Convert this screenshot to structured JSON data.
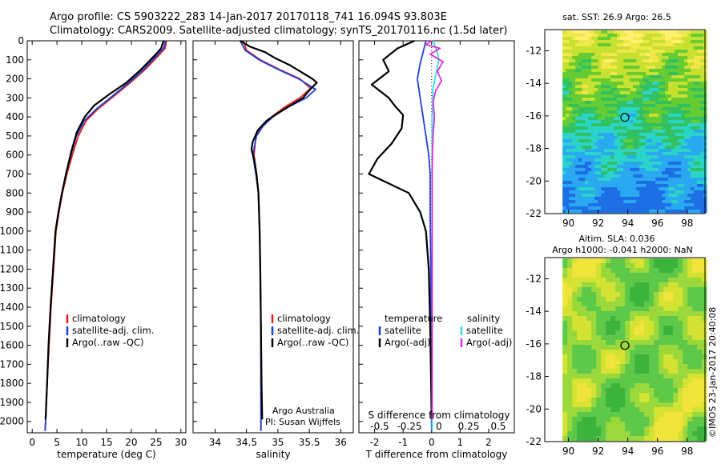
{
  "title_line1": "Argo profile: CS 5903222_283 14-Jan-2017 20170118_741 16.094S 93.803E",
  "title_line2": "Climatology: CARS2009. Satellite-adjusted climatology: synTS_20170116.nc (1.5d later)",
  "credit": "Argo Australia",
  "pi": "PI: Susan Wijffels",
  "imos_stamp": "©IMOS 23-Jan-2017 20:40:08",
  "colors": {
    "climatology": "#e41a1c",
    "satellite": "#1f3fd6",
    "argo": "#000000",
    "salinity_satellite": "#33e0e0",
    "salinity_argo": "#e030d8"
  },
  "chart_data": [
    {
      "id": "temperature",
      "type": "line",
      "xlabel": "temperature (deg C)",
      "ylabel": "",
      "xlim": [
        -1,
        31
      ],
      "ylim": [
        2060,
        0
      ],
      "xticks": [
        0,
        5,
        10,
        15,
        20,
        25,
        30
      ],
      "yticks": [
        0,
        100,
        200,
        300,
        400,
        500,
        600,
        700,
        800,
        900,
        1000,
        1100,
        1200,
        1300,
        1400,
        1500,
        1600,
        1700,
        1800,
        1900,
        2000
      ],
      "legend": [
        "climatology",
        "satellite-adj. clim.",
        "Argo(..raw -QC)"
      ],
      "series": [
        {
          "name": "climatology",
          "color": "#e41a1c",
          "points": [
            [
              27.1,
              0
            ],
            [
              26.8,
              40
            ],
            [
              25.4,
              80
            ],
            [
              22.8,
              150
            ],
            [
              19.8,
              220
            ],
            [
              16.5,
              290
            ],
            [
              13.2,
              360
            ],
            [
              10.9,
              420
            ],
            [
              9.3,
              500
            ],
            [
              8.1,
              600
            ],
            [
              7.0,
              700
            ],
            [
              6.1,
              800
            ],
            [
              5.4,
              900
            ],
            [
              4.8,
              1000
            ],
            [
              4.3,
              1200
            ],
            [
              3.8,
              1400
            ],
            [
              3.4,
              1600
            ],
            [
              3.0,
              1800
            ],
            [
              2.7,
              2000
            ],
            [
              2.6,
              2050
            ]
          ]
        },
        {
          "name": "satellite-adj. clim.",
          "color": "#1f3fd6",
          "points": [
            [
              26.9,
              0
            ],
            [
              26.5,
              40
            ],
            [
              25.0,
              80
            ],
            [
              22.5,
              150
            ],
            [
              19.5,
              220
            ],
            [
              16.2,
              290
            ],
            [
              12.9,
              360
            ],
            [
              10.5,
              420
            ],
            [
              8.9,
              500
            ],
            [
              7.8,
              600
            ],
            [
              6.8,
              700
            ],
            [
              6.0,
              800
            ],
            [
              5.3,
              900
            ],
            [
              4.7,
              1000
            ],
            [
              4.2,
              1200
            ],
            [
              3.7,
              1400
            ],
            [
              3.3,
              1600
            ],
            [
              3.0,
              1800
            ],
            [
              2.7,
              2000
            ],
            [
              2.6,
              2050
            ]
          ]
        },
        {
          "name": "Argo(..raw -QC)",
          "color": "#000000",
          "points": [
            [
              26.5,
              0
            ],
            [
              26.0,
              40
            ],
            [
              24.6,
              80
            ],
            [
              22.0,
              150
            ],
            [
              19.0,
              220
            ],
            [
              15.6,
              280
            ],
            [
              12.5,
              340
            ],
            [
              10.6,
              400
            ],
            [
              9.0,
              480
            ],
            [
              7.9,
              580
            ],
            [
              6.9,
              690
            ],
            [
              6.0,
              800
            ],
            [
              5.3,
              900
            ],
            [
              4.7,
              1000
            ],
            [
              4.2,
              1200
            ],
            [
              3.7,
              1400
            ],
            [
              3.3,
              1600
            ],
            [
              3.0,
              1800
            ],
            [
              2.7,
              1990
            ]
          ]
        }
      ]
    },
    {
      "id": "salinity",
      "type": "line",
      "xlabel": "salinity",
      "xlim": [
        33.65,
        36.2
      ],
      "ylim": [
        2060,
        0
      ],
      "xticks": [
        34,
        34.5,
        35,
        35.5,
        36
      ],
      "legend": [
        "climatology",
        "satellite-adj. clim.",
        "Argo(..raw -QC)"
      ],
      "series": [
        {
          "name": "climatology",
          "color": "#e41a1c",
          "points": [
            [
              34.45,
              0
            ],
            [
              34.5,
              50
            ],
            [
              34.72,
              100
            ],
            [
              35.02,
              150
            ],
            [
              35.35,
              200
            ],
            [
              35.52,
              250
            ],
            [
              35.35,
              300
            ],
            [
              35.1,
              350
            ],
            [
              34.9,
              400
            ],
            [
              34.75,
              450
            ],
            [
              34.65,
              500
            ],
            [
              34.62,
              600
            ],
            [
              34.66,
              700
            ],
            [
              34.69,
              800
            ],
            [
              34.71,
              1000
            ],
            [
              34.72,
              1200
            ],
            [
              34.73,
              1500
            ],
            [
              34.73,
              2050
            ]
          ]
        },
        {
          "name": "satellite-adj. clim.",
          "color": "#1f3fd6",
          "points": [
            [
              34.4,
              0
            ],
            [
              34.48,
              50
            ],
            [
              34.7,
              100
            ],
            [
              35.0,
              150
            ],
            [
              35.33,
              200
            ],
            [
              35.6,
              255
            ],
            [
              35.45,
              300
            ],
            [
              35.15,
              350
            ],
            [
              34.92,
              400
            ],
            [
              34.76,
              450
            ],
            [
              34.66,
              500
            ],
            [
              34.6,
              600
            ],
            [
              34.65,
              700
            ],
            [
              34.69,
              800
            ],
            [
              34.71,
              1000
            ],
            [
              34.72,
              1200
            ],
            [
              34.73,
              1500
            ],
            [
              34.73,
              2050
            ]
          ]
        },
        {
          "name": "Argo(..raw -QC)",
          "color": "#000000",
          "points": [
            [
              34.4,
              0
            ],
            [
              34.55,
              30
            ],
            [
              34.8,
              60
            ],
            [
              34.95,
              90
            ],
            [
              35.2,
              130
            ],
            [
              35.4,
              170
            ],
            [
              35.55,
              200
            ],
            [
              35.62,
              220
            ],
            [
              35.5,
              260
            ],
            [
              35.4,
              300
            ],
            [
              35.2,
              340
            ],
            [
              35.0,
              380
            ],
            [
              34.82,
              420
            ],
            [
              34.68,
              470
            ],
            [
              34.6,
              530
            ],
            [
              34.58,
              570
            ],
            [
              34.62,
              620
            ],
            [
              34.66,
              700
            ],
            [
              34.69,
              800
            ],
            [
              34.71,
              1000
            ],
            [
              34.72,
              1200
            ],
            [
              34.73,
              1500
            ],
            [
              34.74,
              1800
            ],
            [
              34.75,
              1990
            ]
          ]
        }
      ]
    },
    {
      "id": "difference",
      "type": "line",
      "xlabel": "T difference from climatology",
      "xlabel_top": "S difference from climatology",
      "xlim": [
        -2.55,
        2.9
      ],
      "ylim": [
        2060,
        0
      ],
      "xticks": [
        -2,
        -1,
        0,
        1,
        2
      ],
      "xtick_labels": [
        "-2",
        "-1",
        "0",
        "1",
        "2"
      ],
      "sticks": [
        -0.5,
        -0.25,
        0,
        0.25,
        0.5
      ],
      "stick_labels": [
        "-0.5",
        "-0.25",
        "0",
        "0.25",
        "0.5"
      ],
      "legend_headers": [
        "temperature",
        "salinity"
      ],
      "legend": [
        "satellite",
        "Argo(-adj)"
      ],
      "series": [
        {
          "name": "temperature satellite",
          "color": "#1f3fd6",
          "points": [
            [
              -0.2,
              0
            ],
            [
              -0.3,
              60
            ],
            [
              -0.4,
              120
            ],
            [
              -0.5,
              200
            ],
            [
              -0.4,
              300
            ],
            [
              -0.3,
              400
            ],
            [
              -0.2,
              500
            ],
            [
              -0.1,
              600
            ],
            [
              -0.05,
              700
            ],
            [
              -0.05,
              900
            ],
            [
              -0.03,
              1200
            ],
            [
              -0.02,
              1600
            ],
            [
              0,
              2050
            ]
          ]
        },
        {
          "name": "temperature Argo(-adj)",
          "color": "#000000",
          "points": [
            [
              -0.6,
              0
            ],
            [
              -1.2,
              40
            ],
            [
              -1.7,
              100
            ],
            [
              -1.5,
              160
            ],
            [
              -2.1,
              230
            ],
            [
              -1.5,
              300
            ],
            [
              -1.3,
              340
            ],
            [
              -1.0,
              390
            ],
            [
              -1.05,
              460
            ],
            [
              -1.4,
              540
            ],
            [
              -1.9,
              620
            ],
            [
              -2.2,
              700
            ],
            [
              -1.5,
              750
            ],
            [
              -0.8,
              800
            ],
            [
              -0.4,
              900
            ],
            [
              -0.2,
              1000
            ],
            [
              -0.1,
              1200
            ],
            [
              -0.05,
              1500
            ],
            [
              -0.02,
              1800
            ],
            [
              0,
              1990
            ]
          ]
        },
        {
          "name": "salinity satellite",
          "color": "#33e0e0",
          "points": [
            [
              0.05,
              0
            ],
            [
              0.2,
              60
            ],
            [
              0.25,
              100
            ],
            [
              0.15,
              180
            ],
            [
              0.05,
              250
            ],
            [
              0.02,
              400
            ],
            [
              0.02,
              600
            ],
            [
              0.02,
              800
            ],
            [
              0.02,
              1000
            ],
            [
              0.02,
              1400
            ],
            [
              0.02,
              1800
            ],
            [
              0.02,
              2050
            ]
          ]
        },
        {
          "name": "salinity Argo(-adj)",
          "color": "#e030d8",
          "points": [
            [
              0,
              0
            ],
            [
              -0.2,
              20
            ],
            [
              0.3,
              40
            ],
            [
              -0.05,
              70
            ],
            [
              0.4,
              110
            ],
            [
              0.2,
              160
            ],
            [
              0.35,
              210
            ],
            [
              0.15,
              260
            ],
            [
              0.05,
              320
            ],
            [
              0.1,
              400
            ],
            [
              0.05,
              500
            ],
            [
              0.03,
              600
            ],
            [
              0.02,
              700
            ],
            [
              0.02,
              900
            ],
            [
              0.02,
              1200
            ],
            [
              0.02,
              1600
            ],
            [
              0.02,
              1990
            ]
          ]
        }
      ]
    },
    {
      "id": "sst_map",
      "type": "heatmap",
      "title": "sat. SST: 26.9 Argo: 26.5",
      "xticks": [
        90,
        92,
        94,
        96,
        98
      ],
      "yticks": [
        -12,
        -14,
        -16,
        -18,
        -20,
        -22
      ],
      "xlim": [
        88.4,
        99.2
      ],
      "ylim": [
        -22,
        -10.7
      ],
      "marker": [
        93.8,
        -16.09
      ]
    },
    {
      "id": "sla_map",
      "type": "heatmap",
      "title_line1": "Altim. SLA: 0.036",
      "title_line2": "Argo h1000: -0.041 h2000: NaN",
      "xticks": [
        90,
        92,
        94,
        96,
        98
      ],
      "yticks": [
        -12,
        -14,
        -16,
        -18,
        -20,
        -22
      ],
      "xlim": [
        88.4,
        99.2
      ],
      "ylim": [
        -22,
        -10.7
      ],
      "marker": [
        93.8,
        -16.09
      ]
    }
  ]
}
